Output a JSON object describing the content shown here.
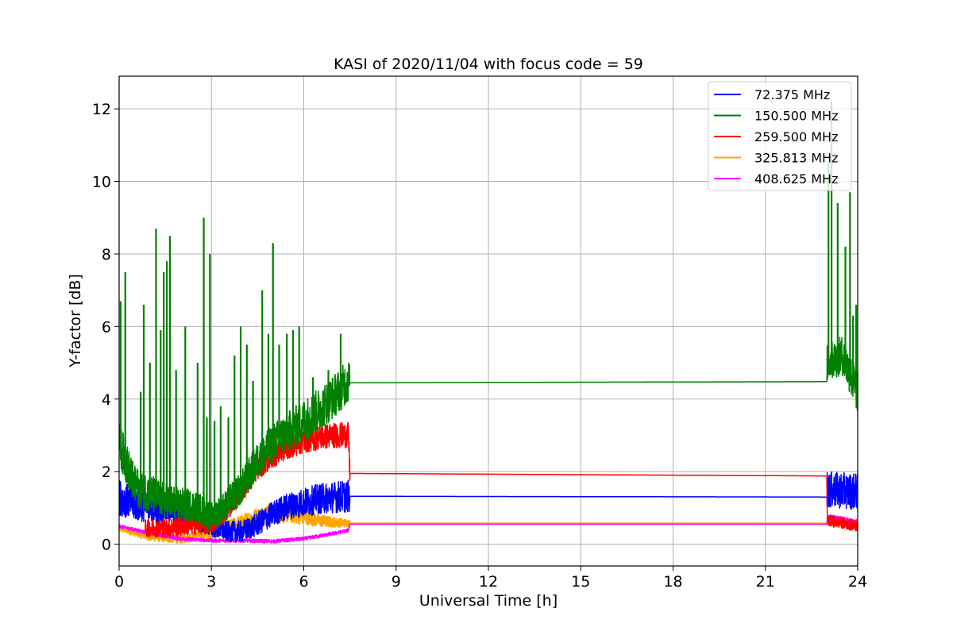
{
  "chart_data": {
    "type": "line",
    "title": "KASI of 2020/11/04 with focus code = 59",
    "xlabel": "Universal Time [h]",
    "ylabel": "Y-factor [dB]",
    "xlim": [
      0,
      24
    ],
    "ylim": [
      -0.6,
      12.9
    ],
    "x_ticks": [
      0,
      3,
      6,
      9,
      12,
      15,
      18,
      21,
      24
    ],
    "x_tick_labels": [
      "0",
      "3",
      "6",
      "9",
      "12",
      "15",
      "18",
      "21",
      "24"
    ],
    "y_ticks": [
      0,
      2,
      4,
      6,
      8,
      10,
      12
    ],
    "y_tick_labels": [
      "0",
      "2",
      "4",
      "6",
      "8",
      "10",
      "12"
    ],
    "grid": true,
    "legend_position": "top-right",
    "series": [
      {
        "name": "72.375 MHz",
        "legend_label": " 72.375 MHz",
        "color": "#0000ff",
        "noisy_until": 7.5,
        "points": [
          [
            0,
            1.3
          ],
          [
            0.5,
            1.1
          ],
          [
            1,
            1.0
          ],
          [
            1.5,
            0.95
          ],
          [
            2,
            0.9
          ],
          [
            2.5,
            0.7
          ],
          [
            3,
            0.45
          ],
          [
            3.5,
            0.35
          ],
          [
            4,
            0.35
          ],
          [
            4.5,
            0.55
          ],
          [
            5,
            0.85
          ],
          [
            5.5,
            1.05
          ],
          [
            6,
            1.15
          ],
          [
            6.5,
            1.25
          ],
          [
            7,
            1.3
          ],
          [
            7.45,
            1.32
          ],
          [
            7.5,
            1.32
          ],
          [
            23,
            1.3
          ],
          [
            23.01,
            1.5
          ],
          [
            24,
            1.45
          ]
        ],
        "noise": [
          [
            0,
            0.5
          ],
          [
            3,
            0.25
          ],
          [
            4,
            0.3
          ],
          [
            6,
            0.4
          ],
          [
            7.5,
            0.45
          ],
          [
            23,
            0.5
          ],
          [
            24,
            0.5
          ]
        ]
      },
      {
        "name": "150.500 MHz",
        "legend_label": "150.500 MHz",
        "color": "#008000",
        "noisy_until": 7.5,
        "points": [
          [
            0,
            2.8
          ],
          [
            0.5,
            1.6
          ],
          [
            1,
            1.4
          ],
          [
            1.5,
            1.2
          ],
          [
            2,
            1.1
          ],
          [
            2.5,
            1.05
          ],
          [
            3,
            0.75
          ],
          [
            3.5,
            1.1
          ],
          [
            4,
            1.6
          ],
          [
            4.5,
            2.3
          ],
          [
            5,
            2.8
          ],
          [
            5.5,
            3.1
          ],
          [
            6,
            3.4
          ],
          [
            6.5,
            3.7
          ],
          [
            7,
            4.1
          ],
          [
            7.45,
            4.5
          ],
          [
            7.5,
            4.45
          ],
          [
            23,
            4.48
          ],
          [
            23.01,
            5.0
          ],
          [
            23.5,
            5.2
          ],
          [
            24,
            4.2
          ]
        ],
        "noise": [
          [
            0,
            0.6
          ],
          [
            3,
            0.4
          ],
          [
            6,
            0.6
          ],
          [
            7.5,
            0.6
          ],
          [
            23,
            0.5
          ],
          [
            24,
            0.6
          ]
        ],
        "spikes": [
          [
            0.05,
            6.7
          ],
          [
            0.2,
            7.5
          ],
          [
            0.7,
            4.2
          ],
          [
            0.8,
            6.6
          ],
          [
            1.0,
            5.0
          ],
          [
            1.2,
            8.7
          ],
          [
            1.35,
            5.9
          ],
          [
            1.45,
            7.5
          ],
          [
            1.55,
            7.8
          ],
          [
            1.65,
            8.5
          ],
          [
            1.85,
            4.8
          ],
          [
            2.15,
            6.0
          ],
          [
            2.55,
            5.0
          ],
          [
            2.75,
            9.0
          ],
          [
            2.85,
            3.5
          ],
          [
            2.95,
            8.0
          ],
          [
            3.1,
            3.4
          ],
          [
            3.3,
            3.8
          ],
          [
            3.55,
            3.5
          ],
          [
            3.75,
            5.2
          ],
          [
            3.95,
            6.0
          ],
          [
            4.15,
            5.5
          ],
          [
            4.35,
            4.5
          ],
          [
            4.65,
            7.0
          ],
          [
            4.85,
            5.8
          ],
          [
            5.0,
            8.3
          ],
          [
            5.2,
            5.5
          ],
          [
            5.45,
            5.8
          ],
          [
            5.65,
            5.9
          ],
          [
            5.85,
            6.0
          ],
          [
            6.3,
            4.6
          ],
          [
            6.8,
            4.8
          ],
          [
            7.2,
            5.8
          ],
          [
            23.05,
            10.5
          ],
          [
            23.15,
            12.2
          ],
          [
            23.35,
            9.4
          ],
          [
            23.6,
            8.2
          ],
          [
            23.75,
            9.7
          ],
          [
            23.85,
            6.3
          ],
          [
            23.95,
            6.6
          ]
        ]
      },
      {
        "name": "259.500 MHz",
        "legend_label": "259.500 MHz",
        "color": "#ff0000",
        "noisy_from": 0.85,
        "noisy_until": 7.5,
        "points": [
          [
            0.85,
            0.45
          ],
          [
            1.5,
            0.45
          ],
          [
            2,
            0.5
          ],
          [
            2.5,
            0.55
          ],
          [
            3,
            0.6
          ],
          [
            3.5,
            0.95
          ],
          [
            4,
            1.5
          ],
          [
            4.5,
            2.1
          ],
          [
            5,
            2.45
          ],
          [
            5.5,
            2.7
          ],
          [
            6,
            2.85
          ],
          [
            6.5,
            2.95
          ],
          [
            7,
            3.0
          ],
          [
            7.45,
            3.0
          ],
          [
            7.5,
            1.95
          ],
          [
            23,
            1.88
          ],
          [
            23.01,
            0.65
          ],
          [
            24,
            0.5
          ]
        ],
        "noise": [
          [
            0.85,
            0.25
          ],
          [
            3,
            0.3
          ],
          [
            5,
            0.35
          ],
          [
            7.5,
            0.35
          ],
          [
            23,
            0.15
          ],
          [
            24,
            0.15
          ]
        ]
      },
      {
        "name": "325.813 MHz",
        "legend_label": "325.813 MHz",
        "color": "#ffa500",
        "noisy_until": 7.5,
        "points": [
          [
            0,
            0.45
          ],
          [
            1,
            0.2
          ],
          [
            2,
            0.15
          ],
          [
            3,
            0.3
          ],
          [
            3.5,
            0.45
          ],
          [
            4,
            0.6
          ],
          [
            4.5,
            0.75
          ],
          [
            5,
            0.85
          ],
          [
            5.5,
            0.85
          ],
          [
            6,
            0.75
          ],
          [
            6.5,
            0.65
          ],
          [
            7,
            0.6
          ],
          [
            7.45,
            0.58
          ],
          [
            7.5,
            0.58
          ],
          [
            23,
            0.58
          ],
          [
            23.01,
            0.6
          ],
          [
            24,
            0.5
          ]
        ],
        "noise": [
          [
            0,
            0.1
          ],
          [
            3,
            0.15
          ],
          [
            5,
            0.3
          ],
          [
            7.5,
            0.1
          ],
          [
            23,
            0.08
          ],
          [
            24,
            0.08
          ]
        ]
      },
      {
        "name": "408.625 MHz",
        "legend_label": "408.625 MHz",
        "color": "#ff00ff",
        "noisy_until": 7.5,
        "points": [
          [
            0,
            0.5
          ],
          [
            1,
            0.3
          ],
          [
            2,
            0.15
          ],
          [
            3,
            0.1
          ],
          [
            4,
            0.1
          ],
          [
            5,
            0.08
          ],
          [
            6,
            0.15
          ],
          [
            7,
            0.3
          ],
          [
            7.45,
            0.38
          ],
          [
            7.5,
            0.55
          ],
          [
            23,
            0.55
          ],
          [
            23.01,
            0.75
          ],
          [
            24,
            0.6
          ]
        ],
        "noise": [
          [
            0,
            0.05
          ],
          [
            7.5,
            0.05
          ],
          [
            23,
            0.08
          ],
          [
            24,
            0.08
          ]
        ]
      }
    ]
  }
}
